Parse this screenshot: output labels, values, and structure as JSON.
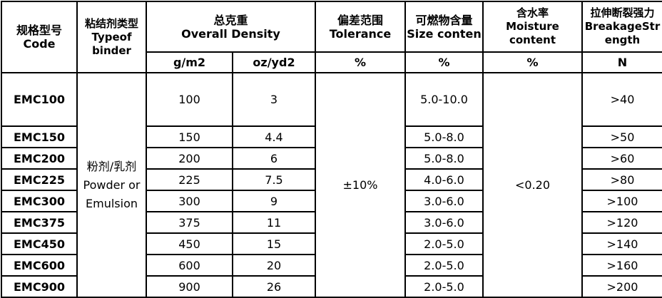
{
  "header": {
    "code": {
      "cn": "规格型号",
      "en": "Code"
    },
    "binder": {
      "cn": "粘结剂类型",
      "en1": "Typeof",
      "en2": "binder"
    },
    "density": {
      "cn": "总克重",
      "en": "Overall Density",
      "unit_gsm": "g/m2",
      "unit_oz": "oz/yd2"
    },
    "tolerance": {
      "cn": "偏差范围",
      "en": "Tolerance",
      "unit": "%"
    },
    "size": {
      "cn": "可燃物含量",
      "en": "Size conten",
      "unit": "%"
    },
    "moisture": {
      "cn": "含水率",
      "en1": "Moisture",
      "en2": "content",
      "unit": "%"
    },
    "strength": {
      "cn": "拉伸断裂强力",
      "en1": "BreakageStr",
      "en2": "ength",
      "unit": "N"
    }
  },
  "binder_value": {
    "cn": "粉剂/乳剂",
    "en1": "Powder or",
    "en2": "Emulsion"
  },
  "tolerance_value": "±10%",
  "moisture_value": "<0.20",
  "rows": [
    {
      "code": "EMC100",
      "gsm": "100",
      "oz": "3",
      "size": "5.0-10.0",
      "strength": ">40"
    },
    {
      "code": "EMC150",
      "gsm": "150",
      "oz": "4.4",
      "size": "5.0-8.0",
      "strength": ">50"
    },
    {
      "code": "EMC200",
      "gsm": "200",
      "oz": "6",
      "size": "5.0-8.0",
      "strength": ">60"
    },
    {
      "code": "EMC225",
      "gsm": "225",
      "oz": "7.5",
      "size": "4.0-6.0",
      "strength": ">80"
    },
    {
      "code": "EMC300",
      "gsm": "300",
      "oz": "9",
      "size": "3.0-6.0",
      "strength": ">100"
    },
    {
      "code": "EMC375",
      "gsm": "375",
      "oz": "11",
      "size": "3.0-6.0",
      "strength": ">120"
    },
    {
      "code": "EMC450",
      "gsm": "450",
      "oz": "15",
      "size": "2.0-5.0",
      "strength": ">140"
    },
    {
      "code": "EMC600",
      "gsm": "600",
      "oz": "20",
      "size": "2.0-5.0",
      "strength": ">160"
    },
    {
      "code": "EMC900",
      "gsm": "900",
      "oz": "26",
      "size": "2.0-5.0",
      "strength": ">200"
    }
  ]
}
